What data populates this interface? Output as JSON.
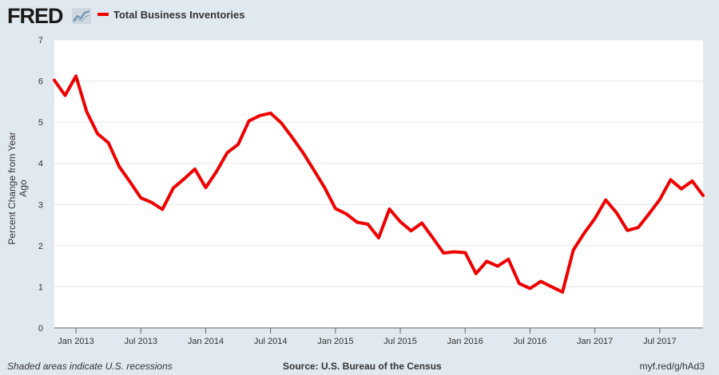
{
  "header": {
    "logo_text": "FRED",
    "logo_icon": "fred-chart-icon",
    "legend_label": "Total Business Inventories",
    "line_color": "#ee0000"
  },
  "footer": {
    "recession_note": "Shaded areas indicate U.S. recessions",
    "source": "Source: U.S. Bureau of the Census",
    "link": "myf.red/g/hAd3"
  },
  "chart_data": {
    "type": "line",
    "ylabel": "Percent Change from Year Ago",
    "ylim": [
      0,
      7
    ],
    "yticks": [
      0,
      1,
      2,
      3,
      4,
      5,
      6,
      7
    ],
    "xlim": [
      "2012-11",
      "2017-11"
    ],
    "xticks": [
      {
        "date": "2013-01",
        "label": "Jan 2013"
      },
      {
        "date": "2013-07",
        "label": "Jul 2013"
      },
      {
        "date": "2014-01",
        "label": "Jan 2014"
      },
      {
        "date": "2014-07",
        "label": "Jul 2014"
      },
      {
        "date": "2015-01",
        "label": "Jan 2015"
      },
      {
        "date": "2015-07",
        "label": "Jul 2015"
      },
      {
        "date": "2016-01",
        "label": "Jan 2016"
      },
      {
        "date": "2016-07",
        "label": "Jul 2016"
      },
      {
        "date": "2017-01",
        "label": "Jan 2017"
      },
      {
        "date": "2017-07",
        "label": "Jul 2017"
      }
    ],
    "grid": true,
    "series": [
      {
        "name": "Total Business Inventories",
        "color": "#ee0000",
        "x": [
          "2012-11",
          "2012-12",
          "2013-01",
          "2013-02",
          "2013-03",
          "2013-04",
          "2013-05",
          "2013-06",
          "2013-07",
          "2013-08",
          "2013-09",
          "2013-10",
          "2013-11",
          "2013-12",
          "2014-01",
          "2014-02",
          "2014-03",
          "2014-04",
          "2014-05",
          "2014-06",
          "2014-07",
          "2014-08",
          "2014-09",
          "2014-10",
          "2014-11",
          "2014-12",
          "2015-01",
          "2015-02",
          "2015-03",
          "2015-04",
          "2015-05",
          "2015-06",
          "2015-07",
          "2015-08",
          "2015-09",
          "2015-10",
          "2015-11",
          "2015-12",
          "2016-01",
          "2016-02",
          "2016-03",
          "2016-04",
          "2016-05",
          "2016-06",
          "2016-07",
          "2016-08",
          "2016-09",
          "2016-10",
          "2016-11",
          "2016-12",
          "2017-01",
          "2017-02",
          "2017-03",
          "2017-04",
          "2017-05",
          "2017-06",
          "2017-07",
          "2017-08",
          "2017-09",
          "2017-10",
          "2017-11"
        ],
        "values": [
          6.02,
          5.65,
          6.12,
          5.25,
          4.72,
          4.5,
          3.92,
          3.55,
          3.16,
          3.05,
          2.88,
          3.4,
          3.62,
          3.86,
          3.41,
          3.8,
          4.26,
          4.46,
          5.03,
          5.16,
          5.22,
          4.98,
          4.63,
          4.26,
          3.84,
          3.41,
          2.9,
          2.77,
          2.57,
          2.52,
          2.19,
          2.89,
          2.58,
          2.36,
          2.55,
          2.19,
          1.82,
          1.85,
          1.83,
          1.32,
          1.62,
          1.5,
          1.67,
          1.08,
          0.96,
          1.13,
          1.0,
          0.87,
          1.89,
          2.3,
          2.66,
          3.11,
          2.8,
          2.37,
          2.44,
          2.77,
          3.12,
          3.6,
          3.38,
          3.57,
          3.22
        ]
      }
    ]
  }
}
